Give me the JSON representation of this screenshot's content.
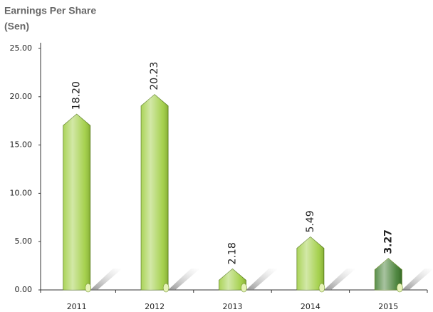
{
  "chart_data": {
    "type": "bar",
    "title": "Earnings Per Share",
    "subtitle": "(Sen)",
    "categories": [
      "2011",
      "2012",
      "2013",
      "2014",
      "2015"
    ],
    "values": [
      18.2,
      20.23,
      2.18,
      5.49,
      3.27
    ],
    "value_labels": [
      "18.20",
      "20.23",
      "2.18",
      "5.49",
      "3.27"
    ],
    "colors": [
      "#9ccc3c",
      "#9ccc3c",
      "#9ccc3c",
      "#9ccc3c",
      "#3d7a2c"
    ],
    "ylim": [
      0,
      25
    ],
    "yticks": [
      {
        "value": 0,
        "label": "0.00"
      },
      {
        "value": 5,
        "label": "5.00"
      },
      {
        "value": 10,
        "label": "10.00"
      },
      {
        "value": 15,
        "label": "15.00"
      },
      {
        "value": 20,
        "label": "20.00"
      },
      {
        "value": 25,
        "label": "25.00"
      }
    ],
    "grid": false
  }
}
